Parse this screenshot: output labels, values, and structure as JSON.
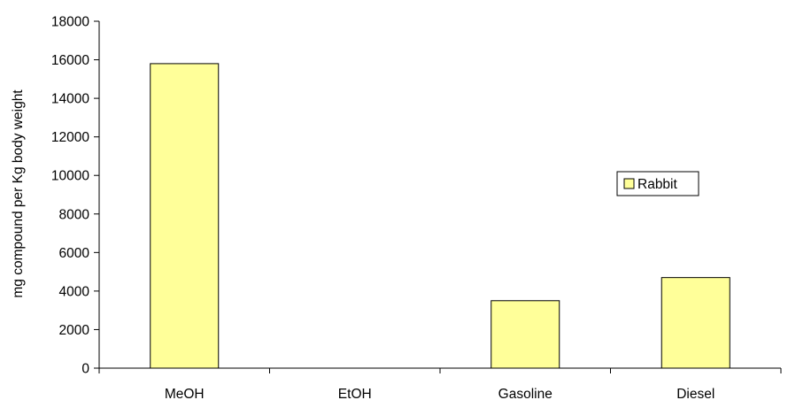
{
  "chart_data": {
    "type": "bar",
    "categories": [
      "MeOH",
      "EtOH",
      "Gasoline",
      "Diesel"
    ],
    "series": [
      {
        "name": "Rabbit",
        "values": [
          15800,
          0,
          3500,
          4700
        ],
        "color": "#ffff99",
        "stroke": "#000000"
      }
    ],
    "title": "",
    "xlabel": "",
    "ylabel": "mg compound per Kg body weight",
    "ylim": [
      0,
      18000
    ],
    "yticks": [
      0,
      2000,
      4000,
      6000,
      8000,
      10000,
      12000,
      14000,
      16000,
      18000
    ],
    "grid": false,
    "legend_position": "right"
  }
}
